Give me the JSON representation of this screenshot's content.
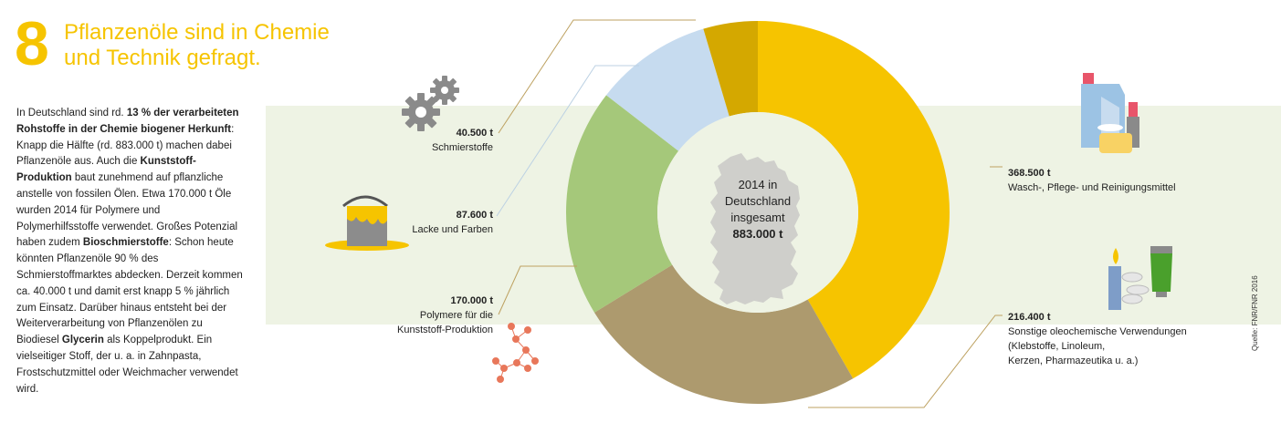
{
  "header": {
    "number": "8",
    "title_line1": "Pflanzenöle sind in Chemie",
    "title_line2": "und Technik gefragt."
  },
  "body": [
    {
      "t": "In Deutschland sind rd. ",
      "b": false
    },
    {
      "t": "13 % der verarbei­teten Rohstoffe in der Chemie biogener Herkunft",
      "b": true
    },
    {
      "t": ": Knapp die Hälfte (rd. 883.000 t) machen dabei Pflanzenöle aus. Auch die ",
      "b": false
    },
    {
      "t": "Kunststoff-Produktion",
      "b": true
    },
    {
      "t": " baut zunehmend auf pflanzliche anstelle von fossilen Ölen. Etwa 170.000 t Öle wurden 2014 für Polymere und Polymerhilfsstoffe verwendet. Großes Potenzial haben zudem ",
      "b": false
    },
    {
      "t": "Bioschmierstoffe",
      "b": true
    },
    {
      "t": ": Schon heute könnten Pflanzenöle 90 % des Schmierstoffmarktes abdecken. Derzeit kommen ca. 40.000 t und damit erst knapp 5 % jährlich zum Einsatz. Darüber hinaus entsteht bei der Weiterverarbeitung von Pflanzenölen zu Biodiesel ",
      "b": false
    },
    {
      "t": "Glycerin",
      "b": true
    },
    {
      "t": " als Koppelprodukt. Ein vielseitiger Stoff, der u. a. in Zahnpasta, Frostschutzmittel oder Weichmacher verwendet wird.",
      "b": false
    }
  ],
  "center": {
    "line1": "2014 in",
    "line2": "Deutschland",
    "line3": "insgesamt",
    "total": "883.000 t"
  },
  "labels": {
    "wasch": {
      "value": "368.500 t",
      "name": "Wasch-, Pflege- und Reinigungsmittel"
    },
    "sonstige": {
      "value": "216.400 t",
      "name1": "Sonstige oleochemische Verwendungen",
      "name2": "(Klebstoffe, Linoleum,",
      "name3": "Kerzen, Pharmazeutika u. a.)"
    },
    "polymere": {
      "value": "170.000 t",
      "name1": "Polymere für die",
      "name2": "Kunststoff-Produktion"
    },
    "lacke": {
      "value": "87.600 t",
      "name": "Lacke und Farben"
    },
    "schmier": {
      "value": "40.500 t",
      "name": "Schmierstoffe"
    }
  },
  "source": "Quelle: FNR/FNR 2016",
  "chart_data": {
    "type": "pie",
    "variant": "donut",
    "total": 883000,
    "unit": "t",
    "slices": [
      {
        "name": "Wasch-, Pflege- und Reinigungsmittel",
        "value": 368500,
        "color": "#f6c400"
      },
      {
        "name": "Sonstige oleochemische Verwendungen",
        "value": 216400,
        "color": "#ad9a6e"
      },
      {
        "name": "Polymere für die Kunststoff-Produktion",
        "value": 170000,
        "color": "#a5c87a"
      },
      {
        "name": "Lacke und Farben",
        "value": 87600,
        "color": "#c6dbef"
      },
      {
        "name": "Schmierstoffe",
        "value": 40500,
        "color": "#d4a800"
      }
    ]
  },
  "colors": {
    "accent": "#f6c400",
    "band": "#eef3e4",
    "map": "#cfcfcb",
    "lines": "#bda160"
  }
}
